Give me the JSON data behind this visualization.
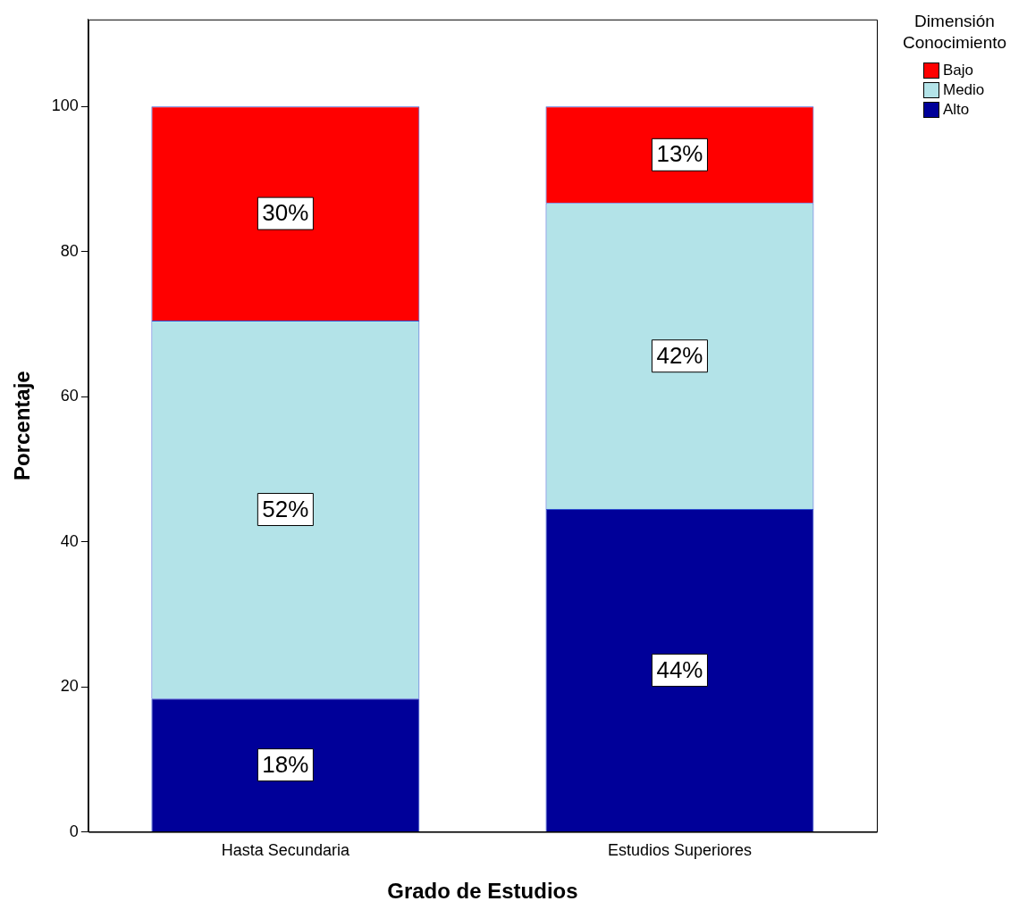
{
  "chart_data": {
    "type": "bar",
    "stacked": true,
    "xlabel": "Grado de Estudios",
    "ylabel": "Porcentaje",
    "legend_title": "Dimensión Conocimiento",
    "legend": "top right",
    "grid": false,
    "categories": [
      "Hasta Secundaria",
      "Estudios Superiores"
    ],
    "ylim": [
      0,
      112
    ],
    "yticks": [
      0,
      20,
      40,
      60,
      80,
      100
    ],
    "series": [
      {
        "name": "Alto",
        "color": "#000099",
        "values": [
          18.4,
          44.5
        ],
        "value_labels": [
          "18%",
          "44%"
        ]
      },
      {
        "name": "Medio",
        "color": "#b3e3e8",
        "values": [
          52.1,
          42.2
        ],
        "value_labels": [
          "52%",
          "42%"
        ]
      },
      {
        "name": "Bajo",
        "color": "#ff0000",
        "values": [
          29.5,
          13.3
        ],
        "value_labels": [
          "30%",
          "13%"
        ]
      }
    ]
  }
}
